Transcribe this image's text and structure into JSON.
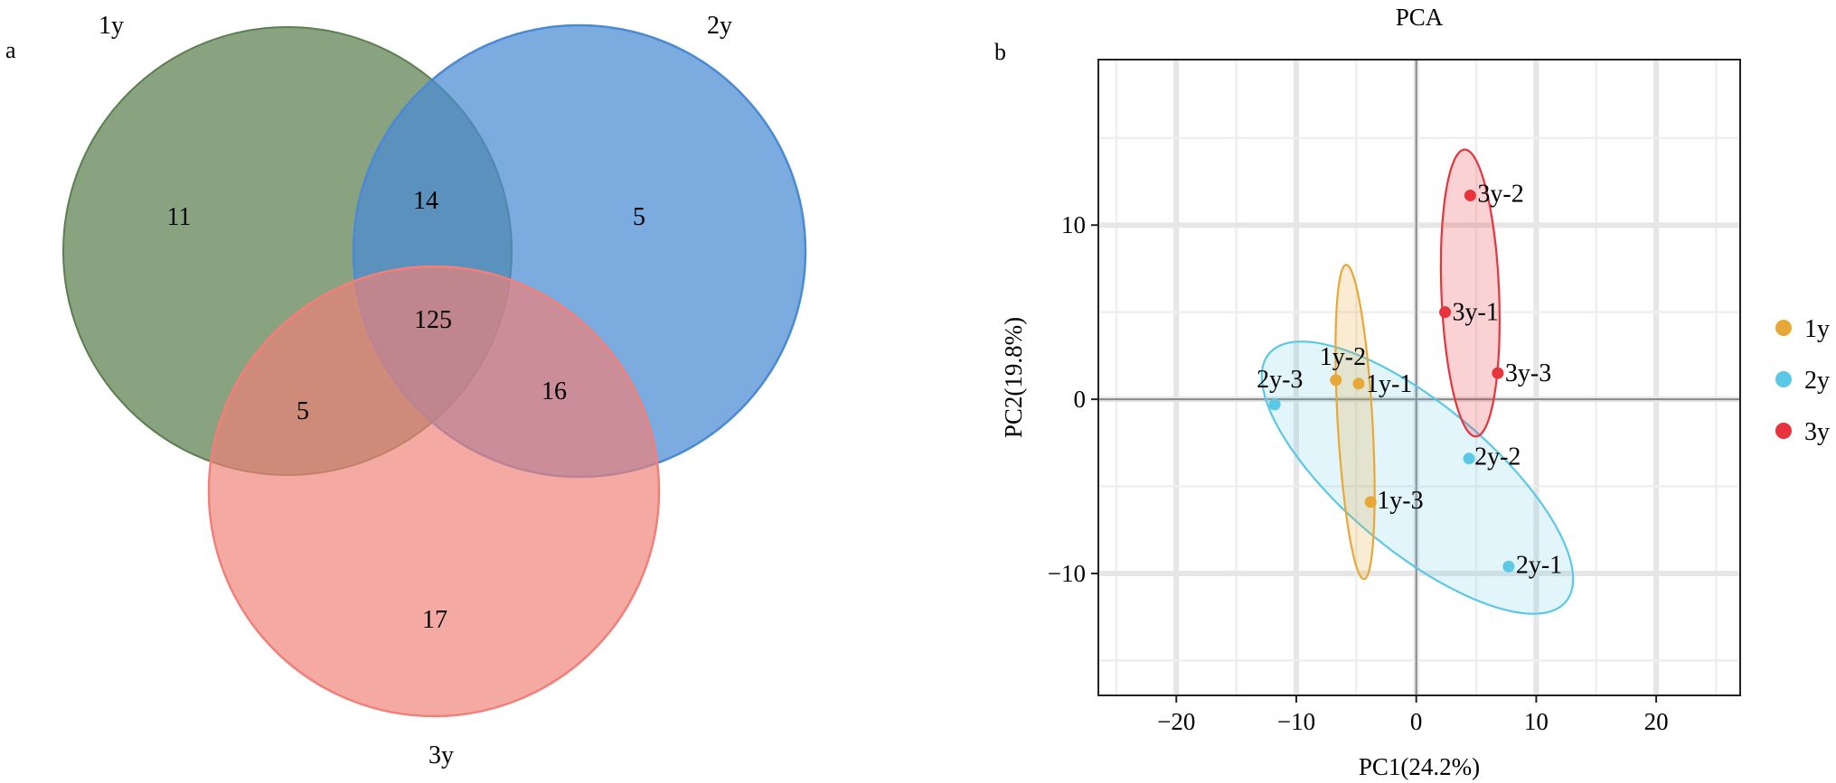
{
  "panel_a": {
    "label": "a",
    "chart_data": {
      "type": "venn",
      "sets": [
        {
          "name": "1y",
          "color": "#5b7f4f"
        },
        {
          "name": "2y",
          "color": "#4a8ad4"
        },
        {
          "name": "3y",
          "color": "#f08078"
        }
      ],
      "regions": {
        "only_1y": 11,
        "only_2y": 5,
        "only_3y": 17,
        "1y_2y": 14,
        "1y_3y": 5,
        "2y_3y": 16,
        "1y_2y_3y": 125
      }
    }
  },
  "panel_b": {
    "label": "b",
    "chart_data": {
      "type": "scatter",
      "title": "PCA",
      "xlabel": "PC1(24.2%)",
      "ylabel": "PC2(19.8%)",
      "xlim": [
        -26.5,
        27
      ],
      "ylim": [
        -17,
        19.5
      ],
      "xticks": [
        -20,
        -10,
        0,
        10,
        20
      ],
      "yticks": [
        -10,
        0,
        10
      ],
      "xtick_labels": [
        "−20",
        "−10",
        "0",
        "10",
        "20"
      ],
      "ytick_labels": [
        "−10",
        "0",
        "10"
      ],
      "grid": true,
      "legend": "right",
      "series": [
        {
          "name": "1y",
          "color": "#e8a838",
          "points": [
            {
              "label": "1y-1",
              "x": -4.8,
              "y": 0.9
            },
            {
              "label": "1y-2",
              "x": -6.7,
              "y": 1.1
            },
            {
              "label": "1y-3",
              "x": -3.8,
              "y": -5.9
            }
          ],
          "ellipse": {
            "cx": -5.1,
            "cy": -1.3,
            "rx": 18.1,
            "ry": 2.9,
            "angle_deg": -85.2
          }
        },
        {
          "name": "2y",
          "color": "#5bc8e6",
          "points": [
            {
              "label": "2y-1",
              "x": 7.7,
              "y": -9.6
            },
            {
              "label": "2y-2",
              "x": 4.4,
              "y": -3.4
            },
            {
              "label": "2y-3",
              "x": -11.8,
              "y": -0.3
            }
          ],
          "ellipse": {
            "cx": 0.1,
            "cy": -4.5,
            "rx": 28.8,
            "ry": 9.4,
            "angle_deg": -27.3
          }
        },
        {
          "name": "3y",
          "color": "#e8323c",
          "points": [
            {
              "label": "3y-1",
              "x": 2.4,
              "y": 5.0
            },
            {
              "label": "3y-2",
              "x": 4.5,
              "y": 11.7
            },
            {
              "label": "3y-3",
              "x": 6.8,
              "y": 1.5
            }
          ],
          "ellipse": {
            "cx": 4.5,
            "cy": 6.1,
            "rx": 16.5,
            "ry": 4.8,
            "angle_deg": -86.5
          }
        }
      ]
    }
  }
}
